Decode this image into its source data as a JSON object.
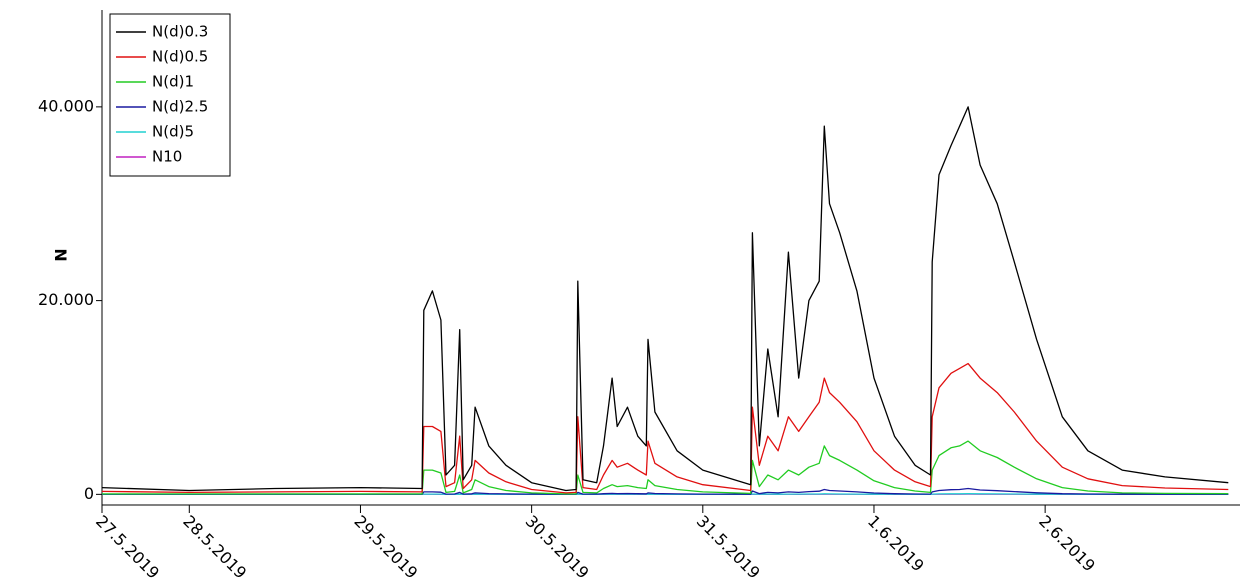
{
  "chart_data": {
    "type": "line",
    "y_label": "N",
    "x": [
      -0.51,
      0,
      0.5,
      1.0,
      1.36,
      1.37,
      1.42,
      1.47,
      1.5,
      1.55,
      1.58,
      1.6,
      1.65,
      1.67,
      1.75,
      1.85,
      2.0,
      2.2,
      2.26,
      2.27,
      2.3,
      2.38,
      2.42,
      2.47,
      2.5,
      2.56,
      2.62,
      2.67,
      2.68,
      2.72,
      2.85,
      3.0,
      3.28,
      3.29,
      3.33,
      3.38,
      3.44,
      3.5,
      3.56,
      3.62,
      3.68,
      3.71,
      3.74,
      3.8,
      3.9,
      4.0,
      4.12,
      4.24,
      4.33,
      4.34,
      4.38,
      4.45,
      4.5,
      4.55,
      4.62,
      4.72,
      4.82,
      4.95,
      5.1,
      5.25,
      5.45,
      5.7,
      6.07
    ],
    "series": [
      {
        "name": "N(d)0.3",
        "color": "#000000",
        "values": [
          700,
          400,
          600,
          700,
          600,
          19000,
          21000,
          18000,
          2000,
          3000,
          17000,
          1500,
          3000,
          9000,
          5000,
          3000,
          1200,
          400,
          500,
          22000,
          1500,
          1200,
          5000,
          12000,
          7000,
          9000,
          6000,
          5000,
          16000,
          8500,
          4500,
          2500,
          1000,
          27000,
          5000,
          15000,
          8000,
          25000,
          12000,
          20000,
          22000,
          38000,
          30000,
          27000,
          21000,
          12000,
          6000,
          3000,
          2000,
          24000,
          33000,
          36000,
          38000,
          40000,
          34000,
          30000,
          24000,
          16000,
          8000,
          4500,
          2500,
          1800,
          1200
        ]
      },
      {
        "name": "N(d)0.5",
        "color": "#e01010",
        "values": [
          300,
          200,
          250,
          300,
          250,
          7000,
          7000,
          6500,
          800,
          1200,
          6000,
          600,
          1500,
          3500,
          2200,
          1300,
          500,
          150,
          200,
          8000,
          700,
          500,
          2000,
          3500,
          2800,
          3200,
          2500,
          2000,
          5500,
          3200,
          1800,
          1000,
          400,
          9000,
          3000,
          6000,
          4500,
          8000,
          6500,
          8000,
          9500,
          12000,
          10500,
          9500,
          7500,
          4500,
          2500,
          1300,
          800,
          8000,
          11000,
          12500,
          13000,
          13500,
          12000,
          10500,
          8500,
          5500,
          2800,
          1600,
          900,
          650,
          500
        ]
      },
      {
        "name": "N(d)1",
        "color": "#22cc22",
        "values": [
          50,
          50,
          50,
          50,
          50,
          2500,
          2500,
          2200,
          200,
          300,
          2000,
          150,
          500,
          1500,
          800,
          400,
          150,
          50,
          50,
          2000,
          200,
          150,
          600,
          1000,
          800,
          900,
          700,
          600,
          1500,
          900,
          500,
          250,
          100,
          3500,
          800,
          2000,
          1500,
          2500,
          2000,
          2800,
          3200,
          5000,
          4000,
          3500,
          2500,
          1400,
          700,
          350,
          200,
          2500,
          4000,
          4800,
          5000,
          5500,
          4500,
          3800,
          2800,
          1600,
          700,
          350,
          150,
          100,
          80
        ]
      },
      {
        "name": "N(d)2.5",
        "color": "#1a1aa0",
        "values": [
          20,
          20,
          20,
          20,
          20,
          250,
          250,
          220,
          30,
          40,
          200,
          30,
          60,
          150,
          80,
          50,
          30,
          20,
          20,
          200,
          30,
          30,
          70,
          100,
          80,
          90,
          70,
          60,
          150,
          90,
          50,
          30,
          20,
          350,
          80,
          200,
          150,
          250,
          200,
          280,
          320,
          500,
          400,
          350,
          250,
          140,
          70,
          40,
          30,
          250,
          400,
          480,
          500,
          600,
          450,
          380,
          280,
          160,
          70,
          40,
          20,
          20,
          20
        ]
      },
      {
        "name": "N(d)5",
        "color": "#20d0d0",
        "values": [
          5,
          5,
          5,
          5,
          5,
          30,
          30,
          25,
          5,
          5,
          25,
          5,
          10,
          20,
          10,
          5,
          5,
          5,
          5,
          25,
          5,
          5,
          10,
          15,
          10,
          10,
          10,
          10,
          20,
          10,
          5,
          5,
          5,
          40,
          10,
          25,
          20,
          30,
          25,
          35,
          40,
          60,
          50,
          40,
          30,
          20,
          10,
          5,
          5,
          30,
          50,
          60,
          60,
          70,
          55,
          45,
          35,
          20,
          10,
          5,
          5,
          5,
          5
        ]
      },
      {
        "name": "N10",
        "color": "#c020c0",
        "values": [
          2,
          2,
          2,
          2,
          2,
          10,
          10,
          8,
          2,
          2,
          8,
          2,
          3,
          6,
          3,
          2,
          2,
          2,
          2,
          8,
          2,
          2,
          3,
          5,
          3,
          3,
          3,
          3,
          6,
          3,
          2,
          2,
          2,
          12,
          3,
          8,
          6,
          10,
          8,
          11,
          12,
          20,
          16,
          12,
          10,
          6,
          3,
          2,
          2,
          10,
          16,
          18,
          20,
          22,
          18,
          15,
          11,
          6,
          3,
          2,
          2,
          2,
          2
        ]
      }
    ],
    "xlim": [
      -0.51,
      6.08
    ],
    "xticks": [
      {
        "value": -0.51,
        "label": "27.5.2019"
      },
      {
        "value": 0,
        "label": "28.5.2019"
      },
      {
        "value": 1,
        "label": "29.5.2019"
      },
      {
        "value": 2,
        "label": "30.5.2019"
      },
      {
        "value": 3,
        "label": "31.5.2019"
      },
      {
        "value": 4,
        "label": "1.6.2019"
      },
      {
        "value": 5,
        "label": "2.6.2019"
      }
    ],
    "ylim": [
      -1100,
      50000
    ],
    "yticks": [
      0,
      {
        "value": 20000,
        "label": "20.000"
      },
      {
        "value": 40000,
        "label": "40.000"
      }
    ],
    "legend": "top-left"
  }
}
